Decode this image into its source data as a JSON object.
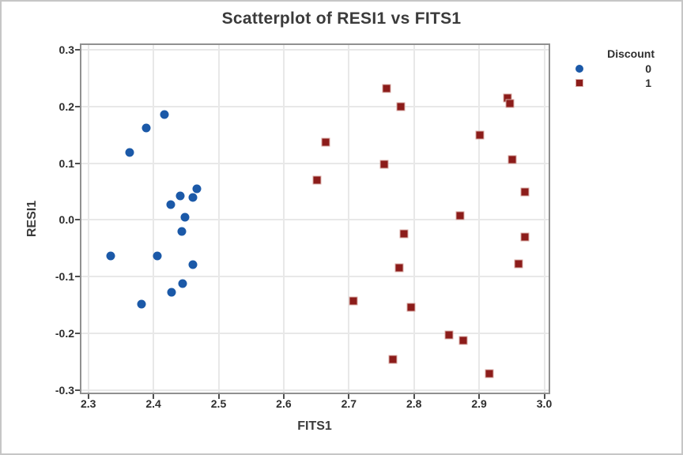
{
  "chart_data": {
    "type": "scatter",
    "title": "Scatterplot of RESI1 vs FITS1",
    "xlabel": "FITS1",
    "ylabel": "RESI1",
    "xlim": [
      2.3,
      3.0
    ],
    "ylim": [
      -0.3,
      0.3
    ],
    "grid": true,
    "x_ticks": [
      2.3,
      2.4,
      2.5,
      2.6,
      2.7,
      2.8,
      2.9,
      3.0
    ],
    "y_ticks": [
      0.3,
      0.2,
      0.1,
      0.0,
      -0.1,
      -0.2,
      -0.3
    ],
    "x_tick_labels": [
      "2.3",
      "2.4",
      "2.5",
      "2.6",
      "2.7",
      "2.8",
      "2.9",
      "3.0"
    ],
    "y_tick_labels": [
      "0.3",
      "0.2",
      "0.1",
      "0.0",
      "-0.1",
      "-0.2",
      "-0.3"
    ],
    "legend": {
      "title": "Discount",
      "position": "top-right-outside",
      "entries": [
        {
          "label": "0",
          "marker": "circle",
          "color": "#1b59a8"
        },
        {
          "label": "1",
          "marker": "square",
          "color": "#8c1c1a",
          "edge_color": "#d9aba6"
        }
      ]
    },
    "series": [
      {
        "name": "discount-0",
        "legend_label": "0",
        "marker": "circle",
        "color": "#1b59a8",
        "points": [
          [
            2.417,
            0.186
          ],
          [
            2.389,
            0.163
          ],
          [
            2.364,
            0.119
          ],
          [
            2.467,
            0.055
          ],
          [
            2.461,
            0.04
          ],
          [
            2.441,
            0.042
          ],
          [
            2.427,
            0.027
          ],
          [
            2.448,
            0.005
          ],
          [
            2.443,
            -0.021
          ],
          [
            2.334,
            -0.063
          ],
          [
            2.406,
            -0.063
          ],
          [
            2.46,
            -0.079
          ],
          [
            2.445,
            -0.112
          ],
          [
            2.428,
            -0.128
          ],
          [
            2.382,
            -0.149
          ]
        ]
      },
      {
        "name": "discount-1",
        "legend_label": "1",
        "marker": "square",
        "color": "#8c1c1a",
        "edge_color": "#d9aba6",
        "points": [
          [
            2.758,
            0.232
          ],
          [
            2.78,
            0.2
          ],
          [
            2.943,
            0.216
          ],
          [
            2.947,
            0.206
          ],
          [
            2.901,
            0.15
          ],
          [
            2.664,
            0.137
          ],
          [
            2.951,
            0.107
          ],
          [
            2.754,
            0.098
          ],
          [
            2.651,
            0.07
          ],
          [
            2.97,
            0.05
          ],
          [
            2.871,
            0.008
          ],
          [
            2.785,
            -0.025
          ],
          [
            2.97,
            -0.03
          ],
          [
            2.96,
            -0.078
          ],
          [
            2.777,
            -0.085
          ],
          [
            2.707,
            -0.143
          ],
          [
            2.795,
            -0.154
          ],
          [
            2.854,
            -0.203
          ],
          [
            2.875,
            -0.213
          ],
          [
            2.768,
            -0.246
          ],
          [
            2.916,
            -0.272
          ]
        ]
      }
    ]
  }
}
